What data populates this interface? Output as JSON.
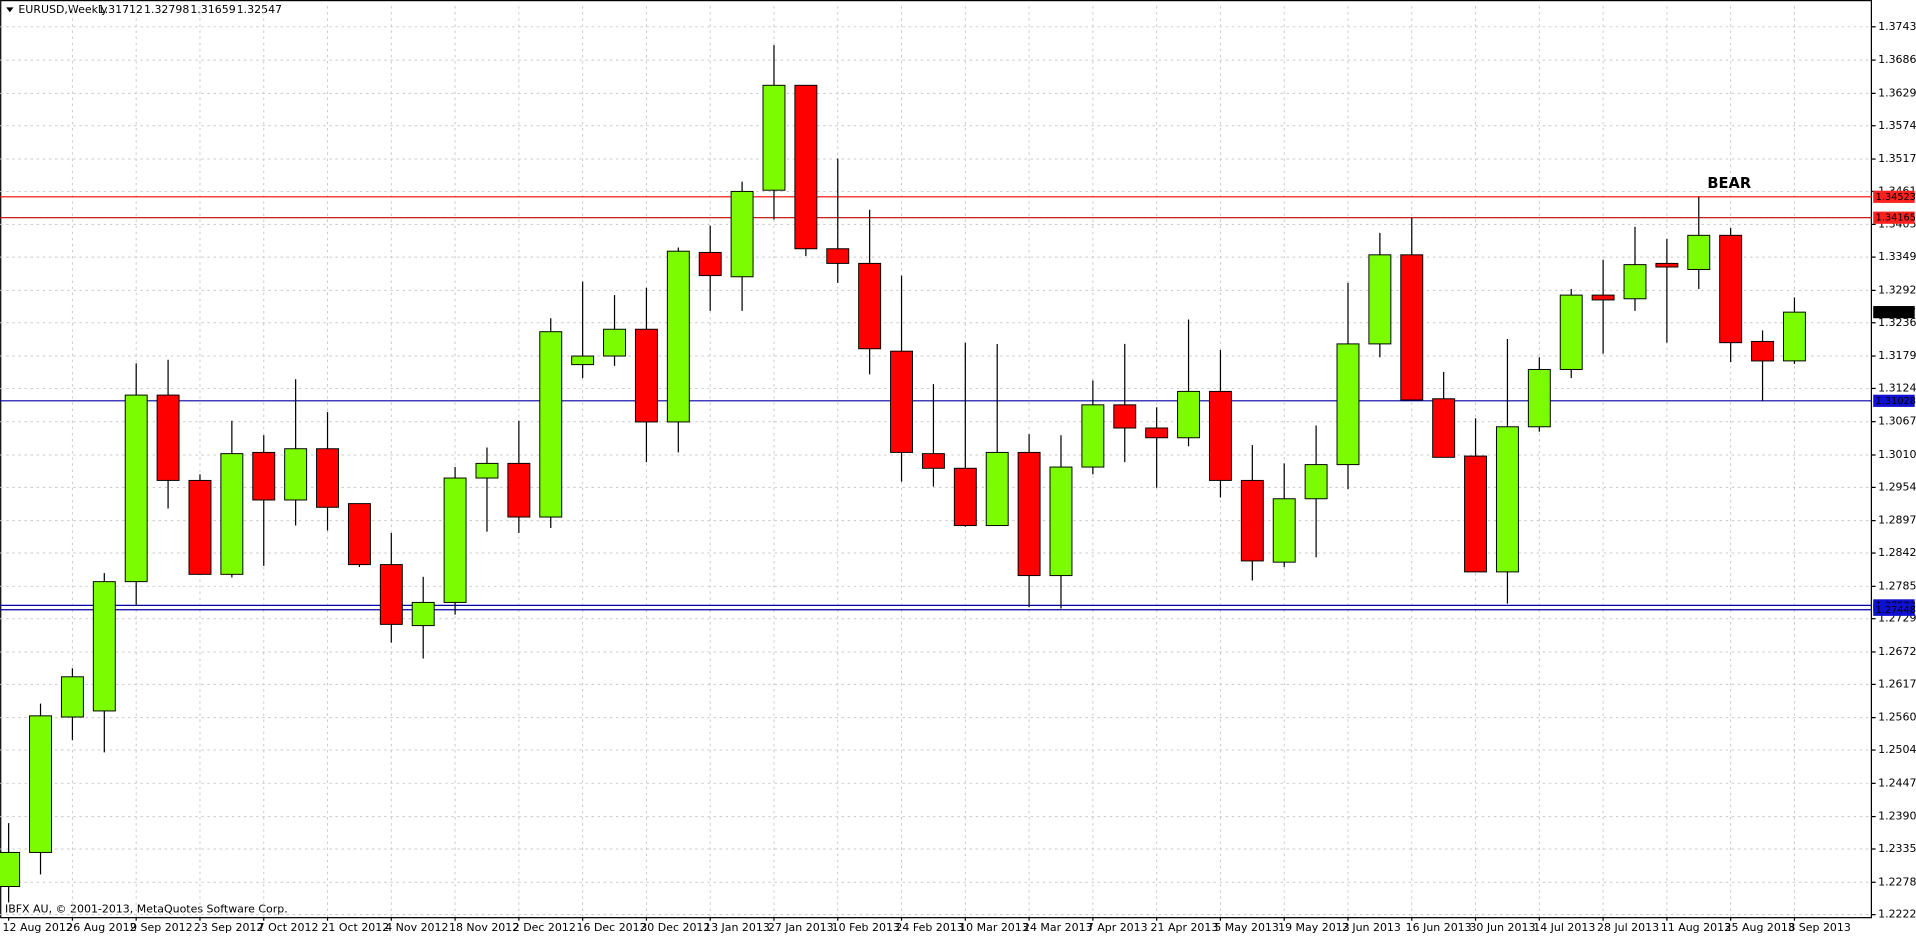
{
  "header": {
    "symbol": "EURUSD,Weekly"
  },
  "chart_data": {
    "type": "candlestick",
    "annotation": "BEAR",
    "copyright": "IBFX AU, © 2001-2013, MetaQuotes Software Corp.",
    "up_color": "#7cfc00",
    "down_color": "#ff0000",
    "grid": true,
    "categories": [
      "12 Aug 2012",
      null,
      "26 Aug 2012",
      null,
      "9 Sep 2012",
      null,
      "23 Sep 2012",
      null,
      "7 Oct 2012",
      null,
      "21 Oct 2012",
      null,
      "4 Nov 2012",
      null,
      "18 Nov 2012",
      null,
      "2 Dec 2012",
      null,
      "16 Dec 2012",
      null,
      "30 Dec 2012",
      null,
      "13 Jan 2013",
      null,
      "27 Jan 2013",
      null,
      "10 Feb 2013",
      null,
      "24 Feb 2013",
      null,
      "10 Mar 2013",
      null,
      "24 Mar 2013",
      null,
      "7 Apr 2013",
      null,
      "21 Apr 2013",
      null,
      "5 May 2013",
      null,
      "19 May 2013",
      null,
      "2 Jun 2013",
      null,
      "16 Jun 2013",
      null,
      "30 Jun 2013",
      null,
      "14 Jul 2013",
      null,
      "28 Jul 2013",
      null,
      "11 Aug 2013",
      null,
      "25 Aug 2013",
      null,
      "8 Sep 2013"
    ],
    "open": [
      1.22707,
      1.23291,
      1.25611,
      1.25715,
      1.2793,
      1.31126,
      1.29664,
      1.28055,
      1.30144,
      1.29329,
      1.30207,
      1.29267,
      1.28222,
      1.27177,
      1.27574,
      1.29705,
      1.29956,
      1.29037,
      1.31648,
      1.31795,
      1.32254,
      1.30666,
      1.3357,
      1.33153,
      1.34636,
      1.36433,
      1.33633,
      1.33382,
      1.31878,
      1.30123,
      1.29872,
      1.28891,
      1.30144,
      1.28034,
      1.29893,
      1.30959,
      1.30562,
      1.30395,
      1.31189,
      1.29664,
      1.28264,
      1.2935,
      1.29935,
      1.32003,
      1.33529,
      1.31063,
      1.30081,
      1.28097,
      1.30583,
      1.31565,
      1.32839,
      1.32776,
      1.33382,
      1.33278,
      1.33863,
      1.32045,
      1.31712
    ],
    "high": [
      1.23793,
      1.2584,
      1.26446,
      1.28076,
      1.31669,
      1.31732,
      1.29768,
      1.30687,
      1.30437,
      1.31398,
      1.30834,
      1.29267,
      1.28765,
      1.28013,
      1.29893,
      1.30228,
      1.30687,
      1.32442,
      1.33069,
      1.32839,
      1.32964,
      1.33654,
      1.3403,
      1.34782,
      1.37122,
      1.36433,
      1.35179,
      1.34302,
      1.33173,
      1.31314,
      1.32022,
      1.32001,
      1.30457,
      1.30437,
      1.31377,
      1.32003,
      1.30917,
      1.32421,
      1.31899,
      1.30269,
      1.29956,
      1.30604,
      1.33048,
      1.33905,
      1.34165,
      1.31523,
      1.30729,
      1.32087,
      1.31774,
      1.32944,
      1.33445,
      1.34009,
      1.338,
      1.34523,
      1.33988,
      1.32233,
      1.32798
    ],
    "low": [
      1.22435,
      1.22915,
      1.25214,
      1.25005,
      1.27512,
      1.29183,
      1.28055,
      1.28,
      1.28201,
      1.28891,
      1.28807,
      1.2818,
      1.26885,
      1.26613,
      1.27365,
      1.28786,
      1.28765,
      1.28849,
      1.31418,
      1.31627,
      1.29977,
      1.30144,
      1.32568,
      1.32568,
      1.34134,
      1.33508,
      1.33048,
      1.31481,
      1.29643,
      1.29559,
      1.2887,
      1.28891,
      1.27491,
      1.2747,
      1.29768,
      1.29977,
      1.29538,
      1.30249,
      1.29371,
      1.2795,
      1.2818,
      1.28347,
      1.29517,
      1.31774,
      1.31042,
      1.3006,
      1.28097,
      1.27553,
      1.30499,
      1.31418,
      1.31836,
      1.32568,
      1.32024,
      1.32944,
      1.3169,
      1.31028,
      1.31659
    ],
    "close": [
      1.23291,
      1.25631,
      1.263,
      1.2793,
      1.31126,
      1.29664,
      1.28055,
      1.30123,
      1.29329,
      1.30207,
      1.29204,
      1.28222,
      1.27198,
      1.27574,
      1.29705,
      1.29956,
      1.29037,
      1.32212,
      1.31795,
      1.32254,
      1.30666,
      1.33591,
      1.33173,
      1.34615,
      1.36433,
      1.33633,
      1.33382,
      1.3192,
      1.30144,
      1.29872,
      1.28891,
      1.30144,
      1.28034,
      1.29893,
      1.30959,
      1.30562,
      1.30395,
      1.31189,
      1.29664,
      1.28285,
      1.2935,
      1.29935,
      1.32003,
      1.33529,
      1.31042,
      1.3006,
      1.28097,
      1.30583,
      1.31565,
      1.32839,
      1.32756,
      1.33361,
      1.3332,
      1.33863,
      1.32024,
      1.31711,
      1.32547
    ],
    "levels": [
      {
        "value": 1.34523,
        "color": "#ff0000"
      },
      {
        "value": 1.34165,
        "color": "#c00000"
      },
      {
        "value": 1.31028,
        "color": "#0000a0"
      },
      {
        "value": 1.27523,
        "color": "#0000a0"
      },
      {
        "value": 1.27448,
        "color": "#0000a0"
      }
    ],
    "ylim": [
      1.22184,
      1.3779
    ],
    "yticks": [
      {
        "value": 1.37435,
        "label": "1.37435"
      },
      {
        "value": 1.36865,
        "label": "1.36865"
      },
      {
        "value": 1.36295,
        "label": "1.36295"
      },
      {
        "value": 1.3574,
        "label": "1.35740"
      },
      {
        "value": 1.3517,
        "label": "1.35170"
      },
      {
        "value": 1.34615,
        "label": "1.34615"
      },
      {
        "value": 1.3405,
        "label": "1.34050"
      },
      {
        "value": 1.3349,
        "label": "1.33490"
      },
      {
        "value": 1.3292,
        "label": "1.32920"
      },
      {
        "value": 1.32365,
        "label": "1.32365"
      },
      {
        "value": 1.31795,
        "label": "1.31795"
      },
      {
        "value": 1.3124,
        "label": "1.31240"
      },
      {
        "value": 1.3067,
        "label": "1.30670"
      },
      {
        "value": 1.301,
        "label": "1.30100"
      },
      {
        "value": 1.29545,
        "label": "1.29545"
      },
      {
        "value": 1.28975,
        "label": "1.28975"
      },
      {
        "value": 1.2842,
        "label": "1.28420"
      },
      {
        "value": 1.2785,
        "label": "1.27850"
      },
      {
        "value": 1.27295,
        "label": "1.27295"
      },
      {
        "value": 1.26725,
        "label": "1.26725"
      },
      {
        "value": 1.2617,
        "label": "1.26170"
      },
      {
        "value": 1.256,
        "label": "1.25600"
      },
      {
        "value": 1.25045,
        "label": "1.25045"
      },
      {
        "value": 1.24475,
        "label": "1.24475"
      },
      {
        "value": 1.23905,
        "label": "1.23905"
      },
      {
        "value": 1.2335,
        "label": "1.23350"
      },
      {
        "value": 1.2278,
        "label": "1.22780"
      },
      {
        "value": 1.22225,
        "label": "1.22225"
      }
    ]
  }
}
